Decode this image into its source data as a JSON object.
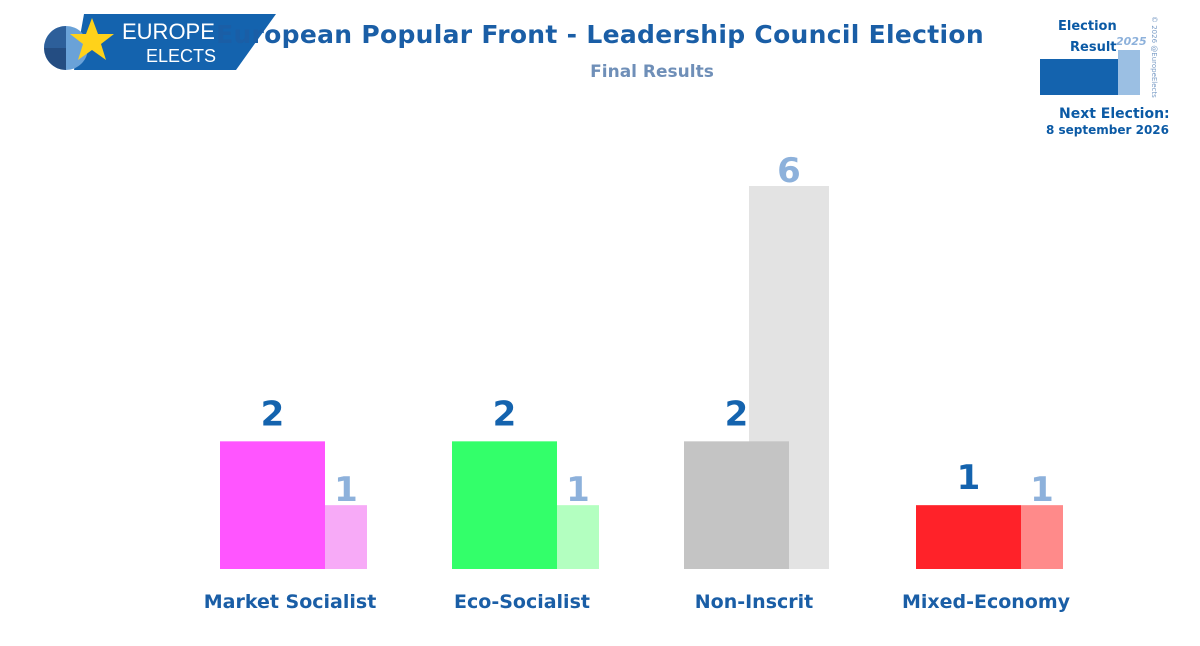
{
  "logo": {
    "line1": "EUROPE",
    "line2": "ELECTS"
  },
  "badge": {
    "election_label": "Election",
    "result_label": "Result",
    "year": "2025",
    "copyright": "© 2026 @EuropeElects",
    "next_election_label": "Next Election:",
    "next_election_date": "8 september 2026"
  },
  "chart_data": {
    "type": "bar",
    "title": "European Popular Front - Leadership Council Election",
    "subtitle": "Final Results",
    "categories": [
      "Market Socialist",
      "Eco-Socialist",
      "Non-Inscrit",
      "Mixed-Economy"
    ],
    "series": [
      {
        "values": [
          2,
          2,
          2,
          1
        ],
        "colors": [
          "#ff55ff",
          "#33ff6a",
          "#c4c4c4",
          "#ff2229"
        ]
      },
      {
        "values": [
          1,
          1,
          6,
          1
        ],
        "colors": [
          "#f7aaf7",
          "#b3ffc0",
          "#e3e3e3",
          "#ff8a8a"
        ]
      }
    ],
    "label_colors": [
      "#1463ae",
      "#8db1db"
    ],
    "ylim": [
      0,
      6
    ],
    "grid": false,
    "legend": "none"
  }
}
